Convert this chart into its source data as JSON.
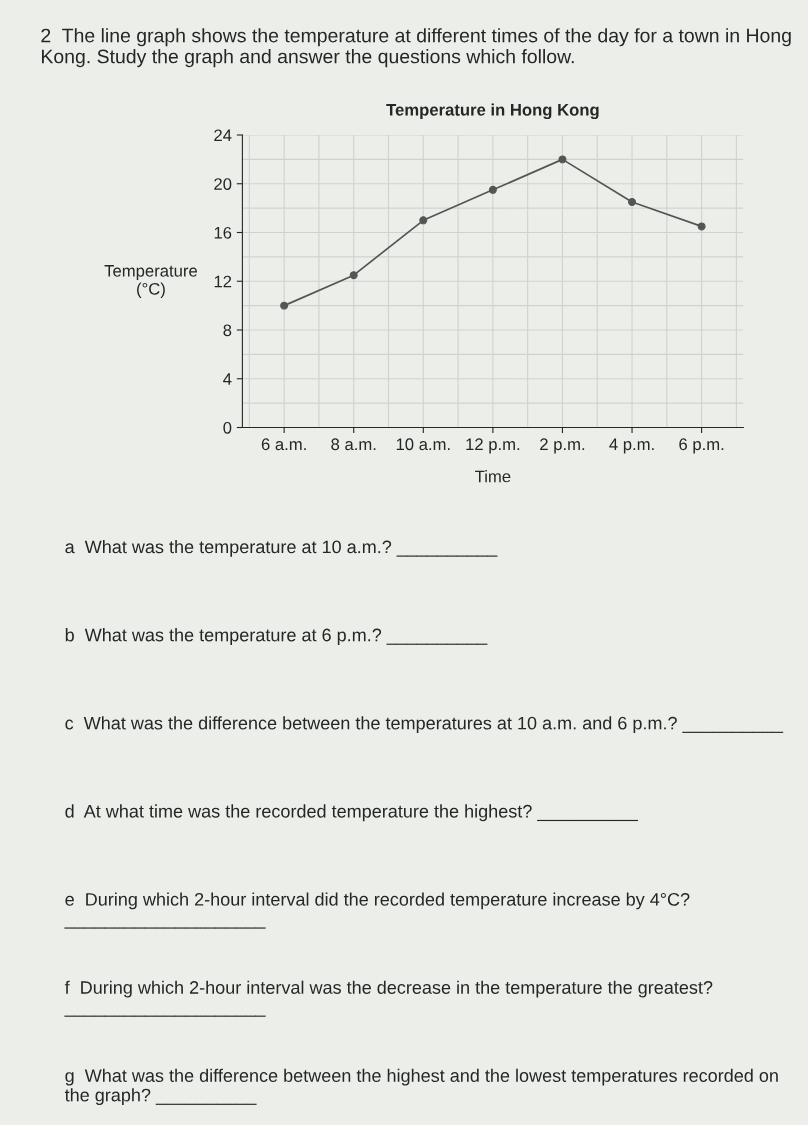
{
  "chart_data": {
    "type": "line",
    "title": "Temperature in Hong Kong",
    "xlabel": "Time",
    "ylabel": "Temperature\n(°C)",
    "categories": [
      "6 a.m.",
      "8 a.m.",
      "10 a.m.",
      "12 p.m.",
      "2 p.m.",
      "4 p.m.",
      "6 p.m."
    ],
    "series": [
      {
        "color": "#555555",
        "values": [
          10,
          12.5,
          17,
          19.5,
          22,
          18.5,
          16.5
        ]
      }
    ],
    "ylim": [
      0,
      24
    ],
    "yticks": [
      0,
      4,
      8,
      12,
      16,
      20,
      24
    ],
    "grid": true,
    "marker": "circle",
    "line_style": "solid",
    "annotations": [
      "2  The line graph shows the temperature at different times of the day for a town in Hong Kong. Study the graph and answer the questions which follow.",
      "a  What was the temperature at 10 a.m.? __________",
      "b  What was the temperature at 6 p.m.? __________",
      "c  What was the difference between the temperatures at 10 a.m. and 6 p.m.? __________",
      "d  At what time was the recorded temperature the highest? __________",
      "e  During which 2-hour interval did the recorded temperature increase by 4°C? ____________________",
      "f  During which 2-hour interval was the decrease in the temperature the greatest? ____________________",
      "g  What was the difference between the highest and the lowest temperatures recorded on the graph? __________"
    ]
  }
}
